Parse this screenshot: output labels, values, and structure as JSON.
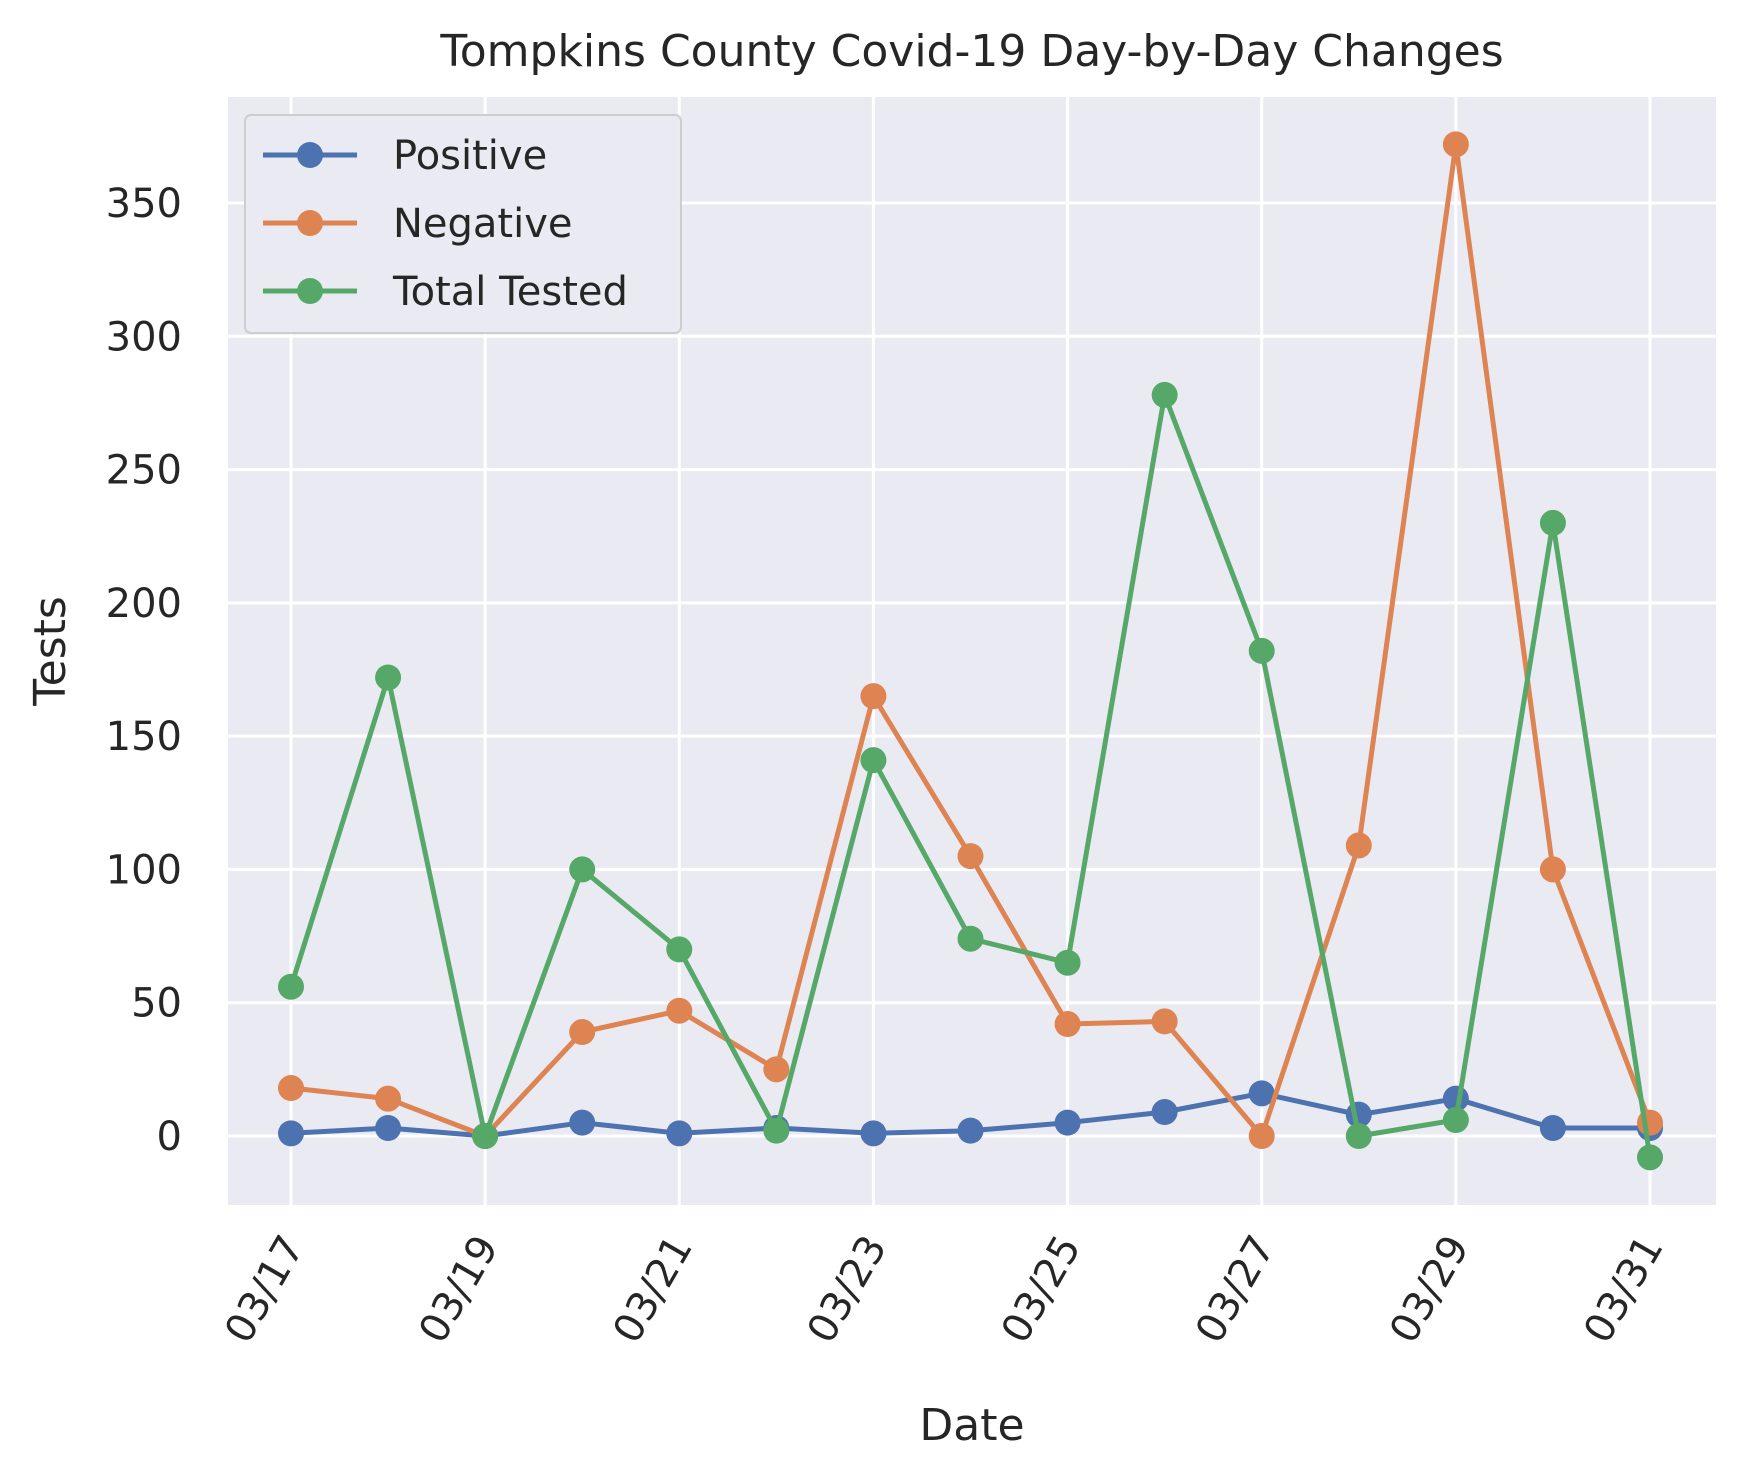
{
  "chart_data": {
    "type": "line",
    "title": "Tompkins County Covid-19 Day-by-Day Changes",
    "xlabel": "Date",
    "ylabel": "Tests",
    "x": [
      "03/17",
      "03/18",
      "03/19",
      "03/20",
      "03/21",
      "03/22",
      "03/23",
      "03/24",
      "03/25",
      "03/26",
      "03/27",
      "03/28",
      "03/29",
      "03/30",
      "03/31"
    ],
    "x_tick_labels": [
      "03/17",
      "03/19",
      "03/21",
      "03/23",
      "03/25",
      "03/27",
      "03/29",
      "03/31"
    ],
    "y_ticks": [
      0,
      50,
      100,
      150,
      200,
      250,
      300,
      350
    ],
    "ylim": [
      -26,
      389
    ],
    "grid": true,
    "legend_position": "top-left",
    "series": [
      {
        "name": "Positive",
        "color": "#4c72b0",
        "values": [
          1,
          3,
          0,
          5,
          1,
          3,
          1,
          2,
          5,
          9,
          16,
          8,
          14,
          3,
          3
        ]
      },
      {
        "name": "Negative",
        "color": "#dd8452",
        "values": [
          18,
          14,
          0,
          39,
          47,
          25,
          165,
          105,
          42,
          43,
          0,
          109,
          372,
          100,
          5
        ]
      },
      {
        "name": "Total Tested",
        "color": "#55a868",
        "values": [
          56,
          172,
          0,
          100,
          70,
          2,
          141,
          74,
          65,
          278,
          182,
          0,
          6,
          230,
          -8
        ]
      }
    ]
  }
}
